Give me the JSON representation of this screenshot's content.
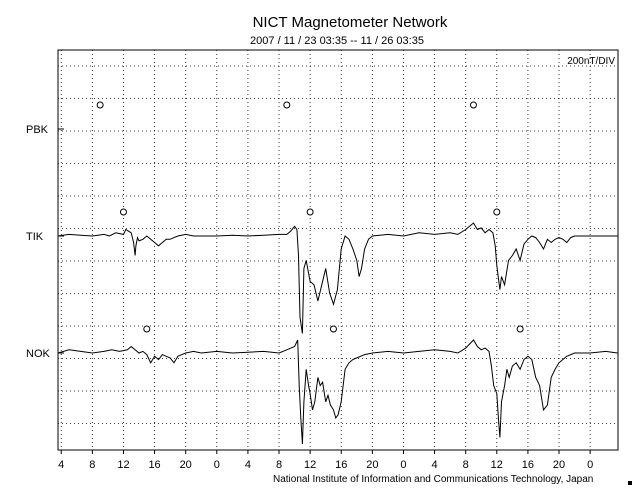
{
  "chart_data": {
    "type": "line",
    "title": "NICT Magnetometer Network",
    "subtitle": "2007 / 11 / 23   03:35 -- 11 / 26   03:35",
    "scale_label": "200nT/DIV",
    "footer": "National Institute of Information and Communications Technology, Japan",
    "grid": true,
    "stations": [
      "PBK",
      "TIK",
      "NOK"
    ],
    "x_ticks": [
      "4",
      "8",
      "12",
      "16",
      "20",
      "0",
      "4",
      "8",
      "12",
      "16",
      "20",
      "0",
      "4",
      "8",
      "12",
      "16",
      "20",
      "0"
    ],
    "xlim_hours": [
      3.583,
      75.583
    ],
    "midnight_markers_hours": [
      [
        9.0,
        33.0,
        57.0
      ],
      [
        12.0,
        36.0,
        60.0
      ],
      [
        15.0,
        39.0,
        63.0
      ]
    ],
    "series": [
      {
        "name": "PBK",
        "x": [],
        "y": []
      },
      {
        "name": "TIK",
        "x": [
          3.6,
          5,
          6.5,
          8,
          9.5,
          10.2,
          11.0,
          12.0,
          12.3,
          13.0,
          13.3,
          13.5,
          13.6,
          13.8,
          14.0,
          14.5,
          15.0,
          15.5,
          16.0,
          16.5,
          17.0,
          17.5,
          18.0,
          18.5,
          19.0,
          20.0,
          21.0,
          22,
          24,
          26,
          28,
          30,
          32,
          33.0,
          33.5,
          34.0,
          34.3,
          34.5,
          34.7,
          35.0,
          35.2,
          35.5,
          36.0,
          36.5,
          37.0,
          37.5,
          38.0,
          38.5,
          39.0,
          39.5,
          40.0,
          40.5,
          41.0,
          41.5,
          42.0,
          42.3,
          42.6,
          43.0,
          43.5,
          44,
          46,
          48,
          50,
          52,
          54,
          55,
          56,
          57.0,
          57.5,
          58.0,
          58.5,
          59.0,
          59.5,
          59.8,
          60.0,
          60.2,
          60.4,
          60.6,
          61.0,
          61.5,
          62.0,
          62.5,
          63.0,
          63.5,
          64.0,
          64.5,
          65.0,
          65.5,
          66.0,
          66.5,
          67.0,
          67.5,
          68.0,
          68.5,
          69.0,
          69.5,
          70,
          72,
          74,
          75.5
        ],
        "y": [
          0,
          10,
          5,
          0,
          10,
          0,
          20,
          10,
          40,
          20,
          -40,
          -120,
          -60,
          -10,
          -30,
          -20,
          0,
          -20,
          -40,
          -60,
          -40,
          -20,
          -20,
          -10,
          0,
          10,
          0,
          0,
          0,
          5,
          0,
          5,
          10,
          10,
          30,
          60,
          40,
          -120,
          -500,
          -600,
          -200,
          -150,
          -280,
          -300,
          -400,
          -300,
          -200,
          -350,
          -420,
          -330,
          -80,
          0,
          -20,
          -80,
          -150,
          -250,
          -200,
          -80,
          -20,
          0,
          10,
          0,
          20,
          10,
          20,
          10,
          40,
          80,
          40,
          50,
          20,
          40,
          20,
          -60,
          -180,
          -260,
          -330,
          -250,
          -300,
          -150,
          -120,
          -80,
          -150,
          -50,
          -20,
          0,
          -10,
          -40,
          -80,
          -20,
          -40,
          -20,
          -10,
          -20,
          -40,
          -10,
          0,
          0,
          0,
          0
        ]
      },
      {
        "name": "NOK",
        "x": [
          3.6,
          5,
          6.5,
          8,
          9.5,
          10.5,
          11.5,
          12.5,
          13.0,
          13.5,
          14.0,
          14.5,
          15.0,
          15.5,
          16.0,
          16.5,
          17.0,
          17.5,
          18.0,
          18.5,
          19.0,
          19.5,
          20.0,
          21.0,
          22,
          24,
          26,
          28,
          30,
          32,
          33.0,
          34.0,
          34.4,
          34.6,
          34.8,
          35.0,
          35.2,
          35.5,
          35.8,
          36.0,
          36.3,
          36.6,
          37.0,
          37.3,
          37.6,
          38.0,
          38.3,
          38.6,
          39.0,
          39.3,
          39.6,
          40.0,
          40.5,
          41.0,
          41.5,
          42,
          43,
          44,
          46,
          48,
          50,
          52,
          54,
          55,
          56,
          57.0,
          57.5,
          58.0,
          58.5,
          59.0,
          59.3,
          59.6,
          60.0,
          60.2,
          60.4,
          60.6,
          61.0,
          61.3,
          61.6,
          62.0,
          62.5,
          63.0,
          63.5,
          64.0,
          64.5,
          65.0,
          65.5,
          66.0,
          66.5,
          67.0,
          67.5,
          68.0,
          68.5,
          69.0,
          70,
          72,
          74,
          75.5
        ],
        "y": [
          0,
          20,
          10,
          0,
          10,
          20,
          10,
          20,
          40,
          20,
          0,
          10,
          -10,
          -60,
          -20,
          -40,
          -10,
          -20,
          -30,
          -60,
          -20,
          -10,
          0,
          10,
          0,
          10,
          0,
          5,
          10,
          0,
          20,
          40,
          80,
          -200,
          -400,
          -560,
          -300,
          -100,
          -200,
          -250,
          -350,
          -300,
          -150,
          -200,
          -180,
          -300,
          -260,
          -320,
          -350,
          -400,
          -380,
          -300,
          -100,
          -60,
          -40,
          -30,
          -10,
          0,
          10,
          0,
          10,
          20,
          10,
          0,
          30,
          80,
          40,
          20,
          30,
          10,
          -80,
          -200,
          -250,
          -400,
          -520,
          -300,
          -200,
          -100,
          -150,
          -80,
          -60,
          -100,
          -40,
          -20,
          -40,
          -150,
          -200,
          -350,
          -320,
          -150,
          -100,
          -60,
          -40,
          -20,
          0,
          0,
          10,
          0
        ]
      }
    ]
  }
}
